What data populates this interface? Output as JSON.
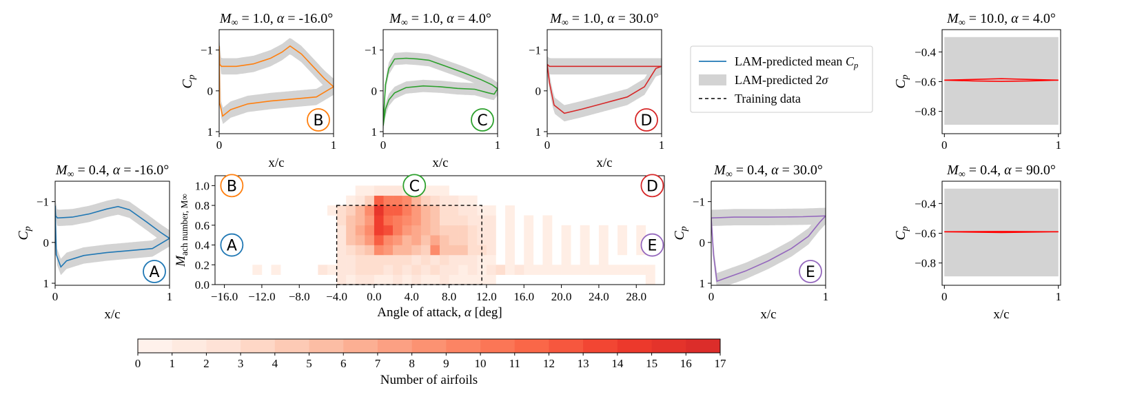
{
  "chart_data": [
    {
      "id": "B",
      "type": "line",
      "title_lhs": "M∞ = 1.0, α = ",
      "title_rhs": "-16.0°",
      "xlabel": "x/c",
      "ylabel": "Cp",
      "xlim": [
        0,
        1
      ],
      "ylim": [
        1.05,
        -1.5
      ],
      "yticks": [
        -1,
        0,
        1
      ],
      "xticks": [
        0,
        1
      ],
      "color": "#ff7f0e",
      "marker": "B",
      "upper": [
        [
          0,
          -1.1
        ],
        [
          0.005,
          -0.65
        ],
        [
          0.02,
          -0.6
        ],
        [
          0.15,
          -0.6
        ],
        [
          0.3,
          -0.66
        ],
        [
          0.45,
          -0.8
        ],
        [
          0.55,
          -0.95
        ],
        [
          0.62,
          -1.1
        ],
        [
          0.72,
          -0.9
        ],
        [
          0.82,
          -0.6
        ],
        [
          0.92,
          -0.3
        ],
        [
          1,
          -0.1
        ]
      ],
      "lower": [
        [
          0,
          -1.1
        ],
        [
          0.005,
          0.3
        ],
        [
          0.03,
          0.62
        ],
        [
          0.1,
          0.46
        ],
        [
          0.25,
          0.32
        ],
        [
          0.45,
          0.25
        ],
        [
          0.65,
          0.2
        ],
        [
          0.85,
          0.15
        ],
        [
          1,
          -0.1
        ]
      ],
      "band": 0.2
    },
    {
      "id": "C",
      "type": "line",
      "title_lhs": "M∞ = 1.0, α = ",
      "title_rhs": "4.0°",
      "xlabel": "x/c",
      "ylabel": "",
      "xlim": [
        0,
        1
      ],
      "ylim": [
        1.05,
        -1.5
      ],
      "yticks": [
        -1,
        0,
        1
      ],
      "xticks": [
        0,
        1
      ],
      "color": "#2ca02c",
      "marker": "C",
      "upper": [
        [
          0,
          0.85
        ],
        [
          0.02,
          -0.15
        ],
        [
          0.05,
          -0.55
        ],
        [
          0.1,
          -0.78
        ],
        [
          0.2,
          -0.8
        ],
        [
          0.3,
          -0.78
        ],
        [
          0.4,
          -0.75
        ],
        [
          0.55,
          -0.6
        ],
        [
          0.7,
          -0.45
        ],
        [
          0.85,
          -0.28
        ],
        [
          0.95,
          -0.15
        ],
        [
          1,
          -0.05
        ]
      ],
      "lower": [
        [
          0,
          0.85
        ],
        [
          0.02,
          0.45
        ],
        [
          0.05,
          0.22
        ],
        [
          0.1,
          0.05
        ],
        [
          0.2,
          -0.08
        ],
        [
          0.35,
          -0.12
        ],
        [
          0.5,
          -0.1
        ],
        [
          0.65,
          -0.06
        ],
        [
          0.8,
          -0.04
        ],
        [
          0.92,
          0.05
        ],
        [
          0.97,
          0.08
        ],
        [
          1,
          -0.05
        ]
      ],
      "band": 0.15
    },
    {
      "id": "D",
      "type": "line",
      "title_lhs": "M∞ = 1.0, α = ",
      "title_rhs": "30.0°",
      "xlabel": "x/c",
      "ylabel": "",
      "xlim": [
        0,
        1
      ],
      "ylim": [
        1.05,
        -1.5
      ],
      "yticks": [
        -1,
        0,
        1
      ],
      "xticks": [
        0,
        1
      ],
      "color": "#d62728",
      "marker": "D",
      "upper": [
        [
          0,
          -0.65
        ],
        [
          0.02,
          -0.6
        ],
        [
          0.2,
          -0.6
        ],
        [
          0.5,
          -0.6
        ],
        [
          0.8,
          -0.6
        ],
        [
          1,
          -0.6
        ]
      ],
      "lower": [
        [
          0,
          -0.65
        ],
        [
          0.02,
          -0.2
        ],
        [
          0.06,
          0.35
        ],
        [
          0.15,
          0.55
        ],
        [
          0.3,
          0.45
        ],
        [
          0.5,
          0.3
        ],
        [
          0.7,
          0.15
        ],
        [
          0.85,
          -0.1
        ],
        [
          0.95,
          -0.55
        ],
        [
          1,
          -0.6
        ]
      ],
      "band": 0.2
    },
    {
      "id": "A",
      "type": "line",
      "title_lhs": "M∞ = 0.4, α = ",
      "title_rhs": "-16.0°",
      "xlabel": "x/c",
      "ylabel": "Cp",
      "xlim": [
        0,
        1
      ],
      "ylim": [
        1.05,
        -1.5
      ],
      "yticks": [
        -1,
        0,
        1
      ],
      "xticks": [
        0,
        1
      ],
      "color": "#1f77b4",
      "marker": "A",
      "upper": [
        [
          0,
          -0.9
        ],
        [
          0.005,
          -0.65
        ],
        [
          0.02,
          -0.6
        ],
        [
          0.15,
          -0.62
        ],
        [
          0.3,
          -0.7
        ],
        [
          0.45,
          -0.82
        ],
        [
          0.55,
          -0.88
        ],
        [
          0.65,
          -0.8
        ],
        [
          0.8,
          -0.5
        ],
        [
          0.92,
          -0.25
        ],
        [
          1,
          -0.1
        ]
      ],
      "lower": [
        [
          0,
          -0.9
        ],
        [
          0.01,
          0.3
        ],
        [
          0.05,
          0.6
        ],
        [
          0.1,
          0.45
        ],
        [
          0.25,
          0.32
        ],
        [
          0.45,
          0.25
        ],
        [
          0.65,
          0.2
        ],
        [
          0.85,
          0.15
        ],
        [
          1,
          -0.1
        ]
      ],
      "band": 0.2
    },
    {
      "id": "E",
      "type": "line",
      "title_lhs": "M∞ = 0.4, α = ",
      "title_rhs": "30.0°",
      "xlabel": "x/c",
      "ylabel": "Cp",
      "xlim": [
        0,
        1
      ],
      "ylim": [
        1.05,
        -1.5
      ],
      "yticks": [
        -1,
        0,
        1
      ],
      "xticks": [
        0,
        1
      ],
      "color": "#9467bd",
      "marker": "E",
      "upper": [
        [
          0,
          -0.6
        ],
        [
          0.2,
          -0.62
        ],
        [
          0.5,
          -0.62
        ],
        [
          0.8,
          -0.63
        ],
        [
          1,
          -0.65
        ]
      ],
      "lower": [
        [
          0,
          -0.6
        ],
        [
          0.02,
          0.3
        ],
        [
          0.05,
          0.95
        ],
        [
          0.1,
          0.9
        ],
        [
          0.3,
          0.7
        ],
        [
          0.5,
          0.45
        ],
        [
          0.7,
          0.15
        ],
        [
          0.85,
          -0.15
        ],
        [
          0.95,
          -0.5
        ],
        [
          1,
          -0.65
        ]
      ],
      "band": 0.2
    },
    {
      "id": "F",
      "type": "line",
      "title_lhs": "M∞ = 10.0, α = ",
      "title_rhs": "4.0°",
      "xlabel": "",
      "ylabel": "Cp",
      "xlim": [
        -0.02,
        1.02
      ],
      "ylim": [
        -0.95,
        -0.25
      ],
      "yticks": [
        -0.4,
        -0.6,
        -0.8
      ],
      "xticks": [
        0,
        1
      ],
      "color": "#ff0000",
      "marker": "",
      "upper": [
        [
          0,
          -0.59
        ],
        [
          0.25,
          -0.585
        ],
        [
          0.5,
          -0.58
        ],
        [
          0.75,
          -0.585
        ],
        [
          1,
          -0.59
        ]
      ],
      "lower": [
        [
          0,
          -0.59
        ],
        [
          0.25,
          -0.595
        ],
        [
          0.5,
          -0.598
        ],
        [
          0.75,
          -0.595
        ],
        [
          1,
          -0.59
        ]
      ],
      "band_upper": -0.3,
      "band_lower": -0.89
    },
    {
      "id": "G",
      "type": "line",
      "title_lhs": "M∞ = 0.4, α = ",
      "title_rhs": "90.0°",
      "xlabel": "x/c",
      "ylabel": "Cp",
      "xlim": [
        -0.02,
        1.02
      ],
      "ylim": [
        -0.95,
        -0.25
      ],
      "yticks": [
        -0.4,
        -0.6,
        -0.8
      ],
      "xticks": [
        0,
        1
      ],
      "color": "#ff0000",
      "marker": "",
      "upper": [
        [
          0,
          -0.59
        ],
        [
          0.5,
          -0.588
        ],
        [
          1,
          -0.59
        ]
      ],
      "lower": [
        [
          0,
          -0.59
        ],
        [
          0.5,
          -0.595
        ],
        [
          1,
          -0.59
        ]
      ],
      "band_upper": -0.3,
      "band_lower": -0.89
    },
    {
      "id": "heatmap",
      "type": "heatmap",
      "xlabel": "Angle of attack, α [deg]",
      "ylabel": "Mach number, M∞",
      "xticks": [
        "-16.0",
        "-12.0",
        "-8.0",
        "-4.0",
        "0.0",
        "4.0",
        "8.0",
        "12.0",
        "16.0",
        "20.0",
        "24.0",
        "28.0"
      ],
      "xtick_values": [
        -16,
        -12,
        -8,
        -4,
        0,
        4,
        8,
        12,
        16,
        20,
        24,
        28
      ],
      "yticks": [
        "0.0",
        "0.2",
        "0.4",
        "0.6",
        "0.8",
        "1.0"
      ],
      "ytick_values": [
        0,
        0.2,
        0.4,
        0.6,
        0.8,
        1.0
      ],
      "xlim": [
        -17,
        31
      ],
      "ylim": [
        0,
        1.1
      ],
      "alpha_start": -17,
      "alpha_step": 1,
      "mach_rows": [
        0.05,
        0.15,
        0.25,
        0.35,
        0.45,
        0.55,
        0.65,
        0.75,
        0.85,
        0.95
      ],
      "mach_step": 0.1,
      "counts": [
        [
          0,
          0,
          0,
          0,
          0,
          0,
          0,
          0,
          0,
          0,
          0,
          0,
          0,
          2,
          1,
          2,
          2,
          1,
          1,
          2,
          1,
          2,
          1,
          1,
          2,
          1,
          1,
          1,
          1,
          1,
          0,
          0,
          0,
          0,
          0,
          0,
          0,
          0,
          0,
          0,
          0,
          0,
          0,
          0,
          0,
          0,
          1,
          0
        ],
        [
          0,
          0,
          0,
          0,
          1,
          0,
          1,
          0,
          0,
          0,
          0,
          2,
          1,
          2,
          2,
          3,
          3,
          3,
          2,
          3,
          2,
          3,
          2,
          3,
          2,
          2,
          1,
          2,
          1,
          2,
          3,
          1,
          2,
          1,
          1,
          1,
          1,
          1,
          1,
          1,
          1,
          1,
          1,
          1,
          1,
          1,
          1,
          0
        ],
        [
          0,
          0,
          0,
          0,
          0,
          0,
          0,
          0,
          0,
          0,
          0,
          0,
          0,
          2,
          2,
          3,
          3,
          3,
          3,
          3,
          3,
          2,
          3,
          2,
          3,
          2,
          2,
          2,
          1,
          1,
          0,
          1,
          0,
          1,
          0,
          1,
          0,
          1,
          0,
          1,
          0,
          1,
          0,
          0,
          0,
          0,
          0,
          0
        ],
        [
          0,
          0,
          0,
          0,
          0,
          0,
          0,
          0,
          0,
          0,
          0,
          0,
          0,
          2,
          3,
          4,
          5,
          9,
          8,
          6,
          6,
          5,
          4,
          9,
          5,
          5,
          5,
          3,
          3,
          2,
          0,
          1,
          0,
          1,
          0,
          1,
          0,
          1,
          0,
          1,
          0,
          1,
          0,
          1,
          0,
          1,
          0,
          0
        ],
        [
          0,
          0,
          0,
          0,
          0,
          0,
          0,
          0,
          0,
          0,
          0,
          0,
          0,
          2,
          5,
          6,
          8,
          12,
          9,
          8,
          6,
          7,
          5,
          7,
          5,
          4,
          4,
          3,
          2,
          2,
          0,
          1,
          0,
          1,
          0,
          1,
          0,
          1,
          0,
          1,
          0,
          1,
          0,
          1,
          0,
          1,
          0,
          0
        ],
        [
          0,
          0,
          0,
          0,
          0,
          0,
          0,
          0,
          0,
          0,
          0,
          0,
          0,
          2,
          5,
          7,
          9,
          14,
          13,
          10,
          8,
          7,
          6,
          5,
          4,
          4,
          4,
          3,
          2,
          2,
          0,
          1,
          0,
          1,
          0,
          1,
          0,
          1,
          0,
          1,
          0,
          1,
          0,
          1,
          0,
          1,
          0,
          0
        ],
        [
          0,
          0,
          0,
          0,
          0,
          0,
          0,
          0,
          0,
          0,
          0,
          0,
          0,
          3,
          5,
          6,
          8,
          14,
          11,
          10,
          9,
          8,
          6,
          5,
          3,
          3,
          3,
          2,
          2,
          2,
          0,
          1,
          0,
          1,
          0,
          1,
          0,
          0,
          0,
          0,
          0,
          0,
          0,
          0,
          0,
          0,
          0,
          0
        ],
        [
          0,
          0,
          0,
          0,
          0,
          0,
          0,
          0,
          0,
          0,
          0,
          0,
          1,
          3,
          4,
          6,
          9,
          15,
          12,
          12,
          10,
          8,
          6,
          5,
          3,
          3,
          2,
          2,
          1,
          1,
          0,
          1,
          0,
          0,
          0,
          0,
          0,
          0,
          0,
          0,
          0,
          0,
          0,
          0,
          0,
          0,
          0,
          0
        ],
        [
          0,
          0,
          0,
          0,
          0,
          0,
          0,
          0,
          0,
          0,
          0,
          0,
          0,
          0,
          1,
          2,
          4,
          12,
          10,
          10,
          9,
          6,
          4,
          3,
          2,
          2,
          1,
          1,
          0,
          0,
          0,
          0,
          0,
          0,
          0,
          0,
          0,
          0,
          0,
          0,
          0,
          0,
          0,
          0,
          0,
          0,
          0,
          0
        ],
        [
          0,
          0,
          0,
          0,
          0,
          0,
          0,
          0,
          0,
          0,
          0,
          0,
          0,
          0,
          0,
          1,
          1,
          2,
          2,
          2,
          1,
          1,
          1,
          1,
          1,
          0,
          0,
          0,
          0,
          0,
          0,
          0,
          0,
          0,
          0,
          0,
          0,
          0,
          0,
          0,
          0,
          0,
          0,
          0,
          0,
          0,
          0,
          0
        ]
      ],
      "training_box": {
        "alpha": [
          -4.0,
          11.5
        ],
        "mach": [
          0.0,
          0.8
        ]
      },
      "markers": [
        {
          "label": "B",
          "alpha": -15.5,
          "mach": 1.0,
          "color": "#ff7f0e"
        },
        {
          "label": "C",
          "alpha": 4.0,
          "mach": 1.0,
          "color": "#2ca02c"
        },
        {
          "label": "D",
          "alpha": 30.0,
          "mach": 1.0,
          "color": "#d62728"
        },
        {
          "label": "A",
          "alpha": -15.5,
          "mach": 0.4,
          "color": "#1f77b4"
        },
        {
          "label": "E",
          "alpha": 30.0,
          "mach": 0.4,
          "color": "#9467bd"
        }
      ]
    }
  ],
  "legend": {
    "placement": "upper-center",
    "entries": [
      {
        "label": "LAM-predicted mean Cp",
        "style": "line",
        "color": "#1f77b4"
      },
      {
        "label": "LAM-predicted 2σ",
        "style": "patch",
        "color": "#d3d3d3"
      },
      {
        "label": "Training data",
        "style": "dashed",
        "color": "#000000"
      }
    ]
  },
  "colorbar": {
    "label": "Number of airfoils",
    "min": 0,
    "max": 17,
    "ticks": [
      "0",
      "1",
      "2",
      "3",
      "4",
      "5",
      "6",
      "7",
      "8",
      "9",
      "10",
      "11",
      "12",
      "13",
      "14",
      "15",
      "16",
      "17"
    ],
    "colors": [
      "#fff5f0",
      "#fee0d2",
      "#fcbba1",
      "#fc9272",
      "#fb6a4a",
      "#ef3b2c",
      "#d82a2a"
    ]
  }
}
